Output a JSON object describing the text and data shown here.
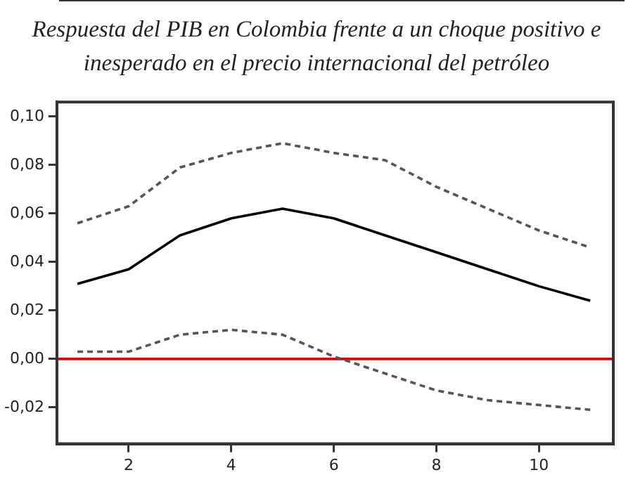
{
  "chart_data": {
    "type": "line",
    "title": "Respuesta del PIB en Colombia frente a un choque positivo e inesperado en el precio internacional del petróleo",
    "x": [
      1,
      2,
      3,
      4,
      5,
      6,
      7,
      8,
      9,
      10,
      11
    ],
    "series": [
      {
        "color": "#555555",
        "line_style": "dashed",
        "values": [
          0.056,
          0.063,
          0.079,
          0.085,
          0.089,
          0.085,
          0.082,
          0.071,
          0.062,
          0.053,
          0.046
        ]
      },
      {
        "color": "#000000",
        "line_style": "solid",
        "values": [
          0.031,
          0.037,
          0.051,
          0.058,
          0.062,
          0.058,
          0.051,
          0.044,
          0.037,
          0.03,
          0.024
        ]
      },
      {
        "color": "#555555",
        "line_style": "dashed",
        "values": [
          0.003,
          0.003,
          0.01,
          0.012,
          0.01,
          0.001,
          -0.006,
          -0.013,
          -0.017,
          -0.019,
          -0.021
        ]
      }
    ],
    "xlim": [
      0.6,
      11.45
    ],
    "xticks": [
      2,
      4,
      6,
      8,
      10
    ],
    "ylim": [
      -0.035,
      0.106
    ],
    "yticks": [
      {
        "value": -0.02,
        "label": "-0,02"
      },
      {
        "value": 0,
        "label": "0,00"
      },
      {
        "value": 0.02,
        "label": "0,02"
      },
      {
        "value": 0.04,
        "label": "0,04"
      },
      {
        "value": 0.06,
        "label": "0,06"
      },
      {
        "value": 0.08,
        "label": "0,08"
      },
      {
        "value": 0.1,
        "label": "0,10"
      }
    ],
    "ref_lines": [
      {
        "axis": "y",
        "value": 0,
        "color": "#e00000"
      }
    ],
    "grid": false,
    "legend": false,
    "marker": "none"
  }
}
